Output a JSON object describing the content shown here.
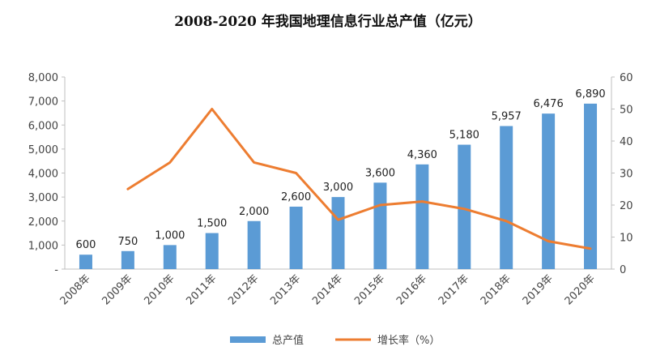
{
  "chart_data": {
    "type": "bar",
    "title": "2008-2020 年我国地理信息行业总产值（亿元）",
    "categories": [
      "2008年",
      "2009年",
      "2010年",
      "2011年",
      "2012年",
      "2013年",
      "2014年",
      "2015年",
      "2016年",
      "2017年",
      "2018年",
      "2019年",
      "2020年"
    ],
    "series": [
      {
        "name": "总产值",
        "type": "bar",
        "axis": "left",
        "color": "#5B9BD5",
        "values": [
          600,
          750,
          1000,
          1500,
          2000,
          2600,
          3000,
          3600,
          4360,
          5180,
          5957,
          6476,
          6890
        ],
        "labels": [
          "600",
          "750",
          "1,000",
          "1,500",
          "2,000",
          "2,600",
          "3,000",
          "3,600",
          "4,360",
          "5,180",
          "5,957",
          "6,476",
          "6,890"
        ]
      },
      {
        "name": "增长率（%）",
        "type": "line",
        "axis": "right",
        "color": "#ED7D31",
        "values": [
          null,
          25,
          33.3,
          50,
          33.3,
          30,
          15.4,
          20,
          21.1,
          18.8,
          15,
          8.7,
          6.4
        ]
      }
    ],
    "y_left": {
      "ylim": [
        0,
        8000
      ],
      "ticks": [
        "-",
        "1,000",
        "2,000",
        "3,000",
        "4,000",
        "5,000",
        "6,000",
        "7,000",
        "8,000"
      ]
    },
    "y_right": {
      "ylim": [
        0,
        60
      ],
      "ticks": [
        "0",
        "10",
        "20",
        "30",
        "40",
        "50",
        "60"
      ]
    },
    "grid": false,
    "legend_position": "bottom"
  }
}
